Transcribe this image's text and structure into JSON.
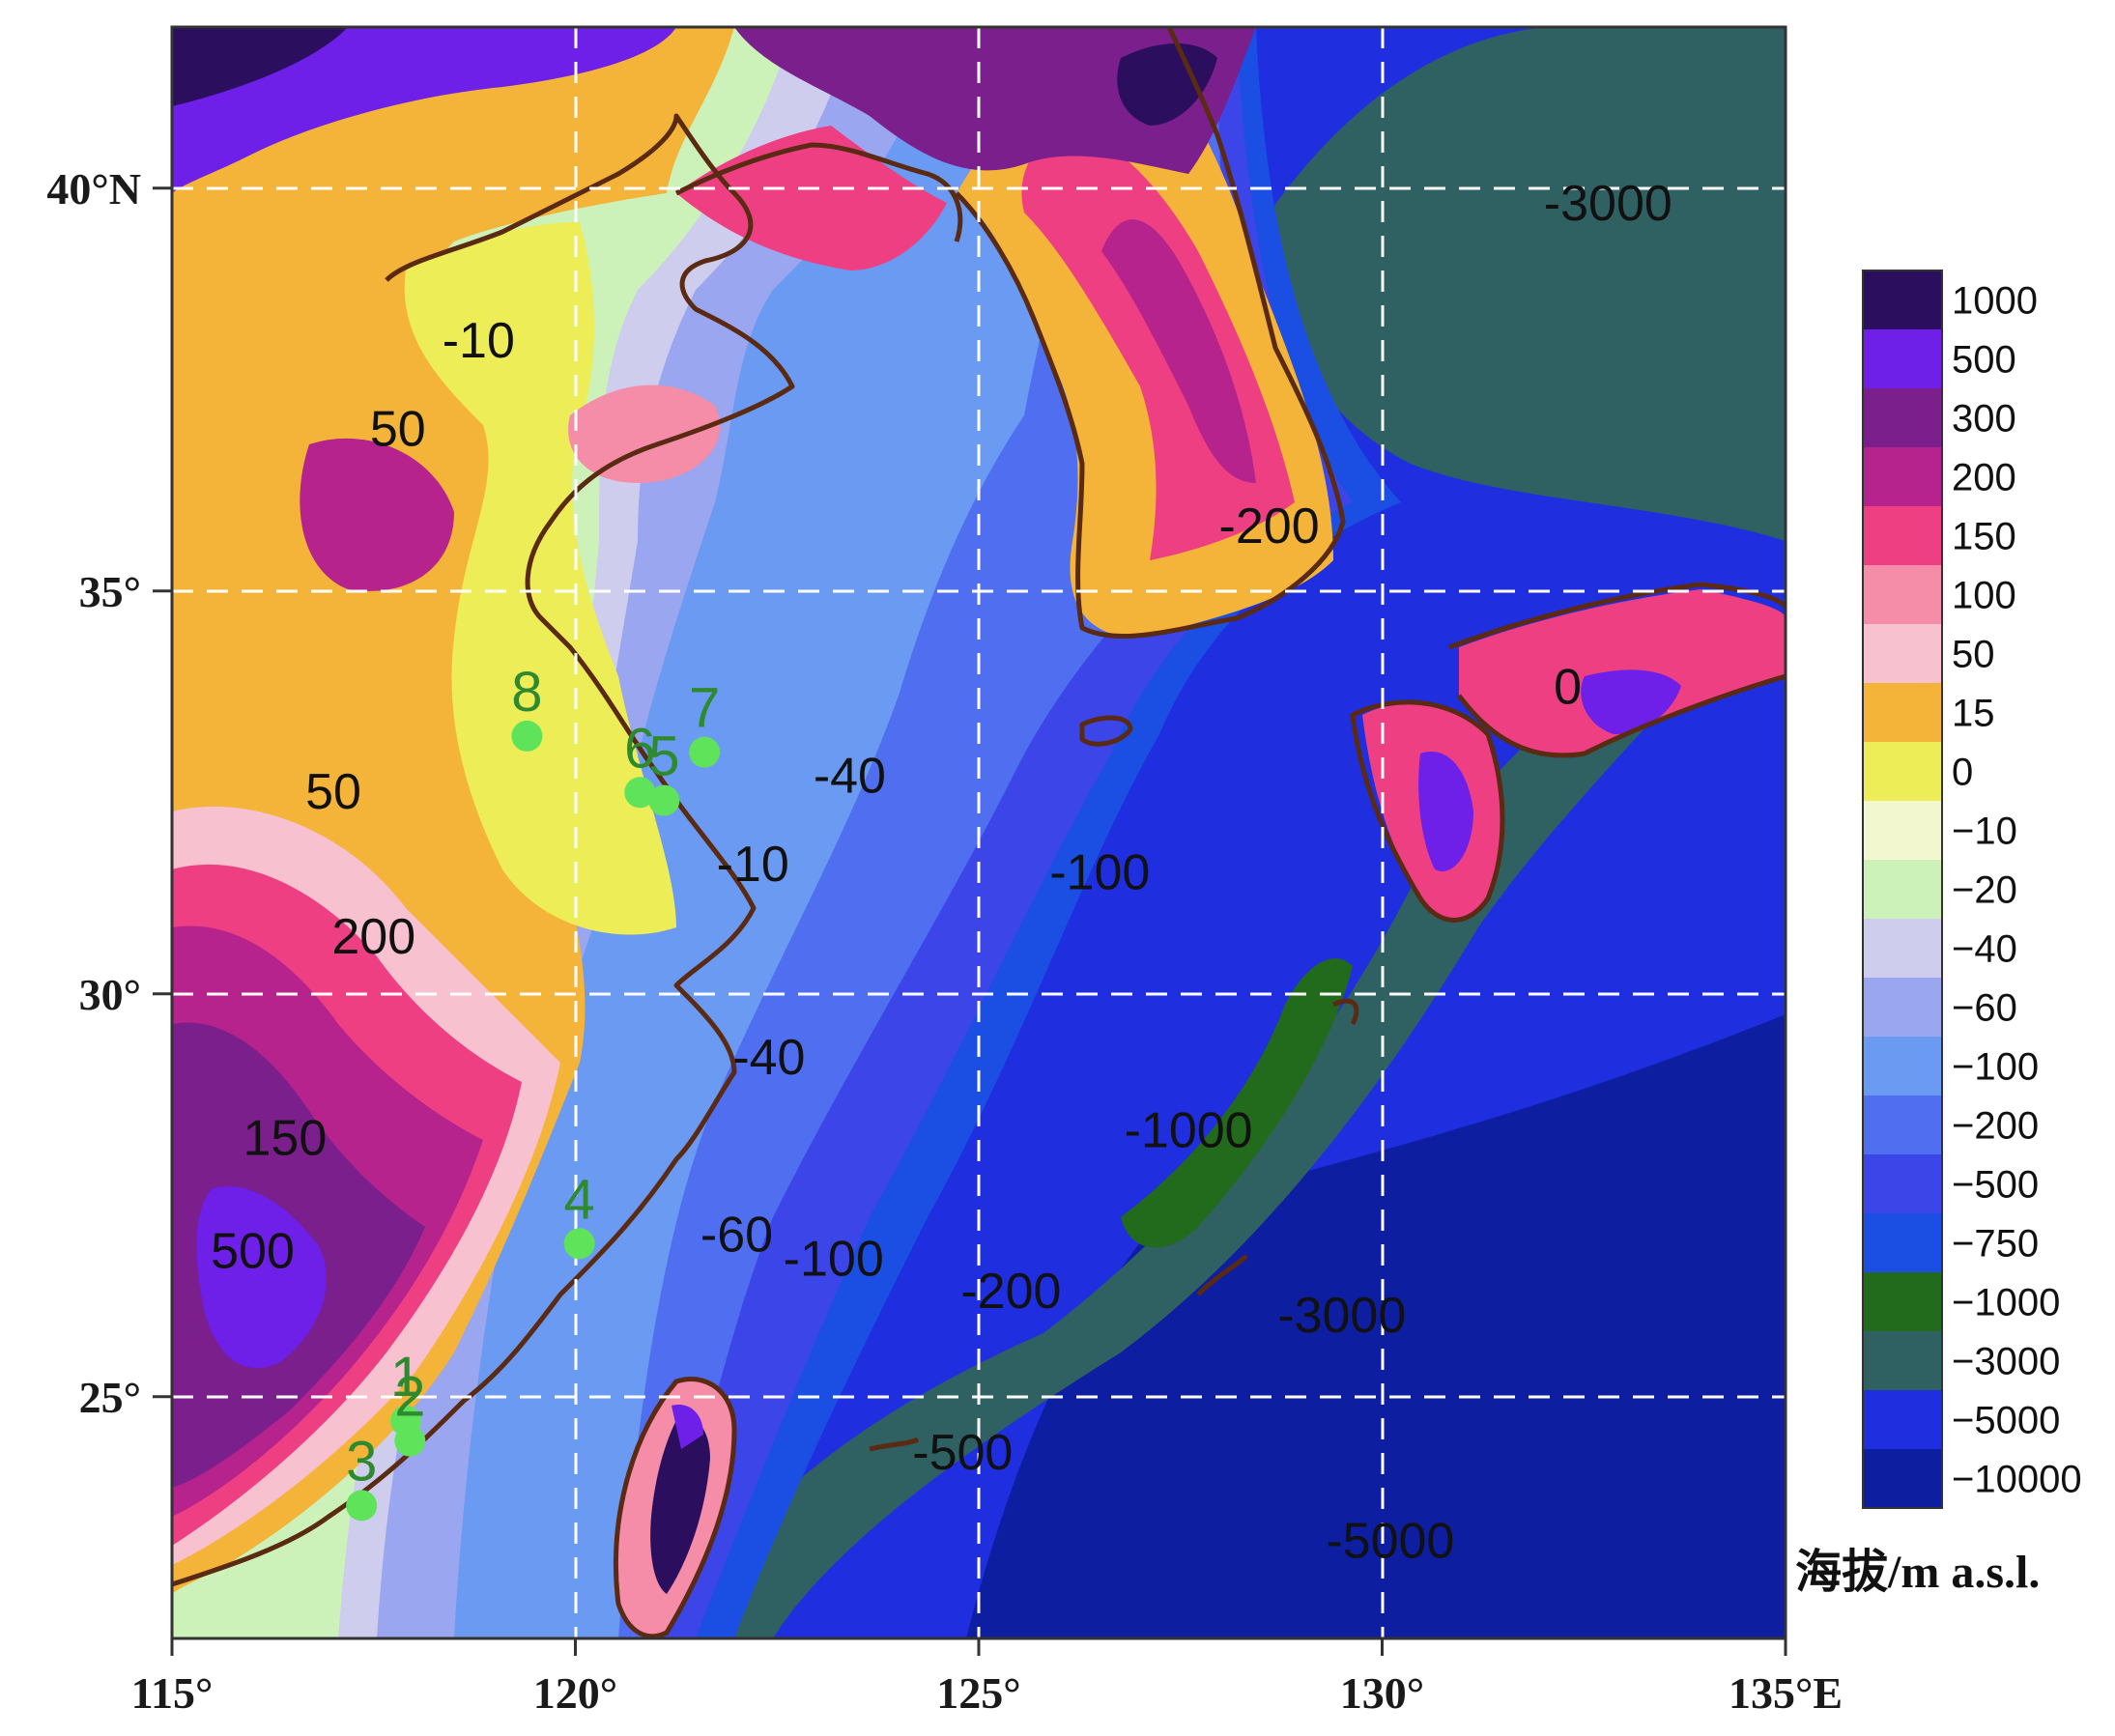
{
  "map": {
    "lon_range": [
      115,
      135
    ],
    "lat_range": [
      22,
      42
    ],
    "lon_ticks": [
      "115°",
      "120°",
      "125°",
      "130°",
      "135°E"
    ],
    "lat_ticks": [
      "40°N",
      "35°",
      "30°",
      "25°"
    ],
    "grid": "dashed white"
  },
  "sites": [
    {
      "label": "1",
      "lon": 117.9,
      "lat": 24.7
    },
    {
      "label": "2",
      "lon": 117.95,
      "lat": 24.45
    },
    {
      "label": "3",
      "lon": 117.35,
      "lat": 23.65
    },
    {
      "label": "4",
      "lon": 120.05,
      "lat": 26.9
    },
    {
      "label": "5",
      "lon": 121.1,
      "lat": 32.4
    },
    {
      "label": "6",
      "lon": 120.8,
      "lat": 32.5
    },
    {
      "label": "7",
      "lon": 121.6,
      "lat": 33.0
    },
    {
      "label": "8",
      "lon": 119.4,
      "lat": 33.2
    }
  ],
  "contour_labels": [
    {
      "text": "-10",
      "lon": 118.8,
      "lat": 37.9
    },
    {
      "text": "50",
      "lon": 117.8,
      "lat": 36.8
    },
    {
      "text": "-3000",
      "lon": 132.8,
      "lat": 39.6
    },
    {
      "text": "-200",
      "lon": 128.6,
      "lat": 35.6
    },
    {
      "text": "50",
      "lon": 117.0,
      "lat": 32.3
    },
    {
      "text": "-40",
      "lon": 123.4,
      "lat": 32.5
    },
    {
      "text": "-10",
      "lon": 122.2,
      "lat": 31.4
    },
    {
      "text": "-100",
      "lon": 126.5,
      "lat": 31.3
    },
    {
      "text": "0",
      "lon": 132.3,
      "lat": 33.6
    },
    {
      "text": "200",
      "lon": 117.5,
      "lat": 30.5
    },
    {
      "text": "-40",
      "lon": 122.4,
      "lat": 29.0
    },
    {
      "text": "-1000",
      "lon": 127.6,
      "lat": 28.1
    },
    {
      "text": "150",
      "lon": 116.4,
      "lat": 28.0
    },
    {
      "text": "-60",
      "lon": 122.0,
      "lat": 26.8
    },
    {
      "text": "-100",
      "lon": 123.2,
      "lat": 26.5
    },
    {
      "text": "-200",
      "lon": 125.4,
      "lat": 26.1
    },
    {
      "text": "500",
      "lon": 116.0,
      "lat": 26.6
    },
    {
      "text": "-3000",
      "lon": 129.5,
      "lat": 25.8
    },
    {
      "text": "-500",
      "lon": 124.8,
      "lat": 24.1
    },
    {
      "text": "-5000",
      "lon": 130.1,
      "lat": 23.0
    }
  ],
  "legend": {
    "title": "海拔/m a.s.l.",
    "ticks": [
      "1000",
      "500",
      "300",
      "200",
      "150",
      "100",
      "50",
      "15",
      "0",
      "−10",
      "−20",
      "−40",
      "−60",
      "−100",
      "−200",
      "−500",
      "−750",
      "−1000",
      "−3000",
      "−5000",
      "−10000"
    ],
    "colors": [
      "#2b0f5e",
      "#6e1fe8",
      "#7b1f8c",
      "#b6238d",
      "#ef3f83",
      "#f58ca8",
      "#f7c1cf",
      "#f4b43a",
      "#eded58",
      "#f3f7cf",
      "#cdf2b9",
      "#cfcdee",
      "#9aa6ef",
      "#6a9af2",
      "#4f6ef0",
      "#3b45e8",
      "#1b4fe3",
      "#236b1c",
      "#2f6163",
      "#1f2fe0",
      "#0e1ea0"
    ]
  },
  "palette": {
    "deep_ocean": "#0e1ea0",
    "ocean_5000": "#1f2fe0",
    "trench_3000": "#2f6163",
    "slope_1000": "#236b1c",
    "shelf_500": "#1b4fe3",
    "shelf_200": "#3b45e8",
    "shelf_100": "#4f6ef0",
    "shelf_60": "#6a9af2",
    "shelf_40": "#9aa6ef",
    "shelf_20": "#cfcdee",
    "shelf_10": "#cdf2b9",
    "coast_0": "#f3f7cf",
    "lowland_15": "#eded58",
    "plain_50": "#f4b43a",
    "hill_100": "#f7c1cf",
    "hill_150": "#f58ca8",
    "hill_200": "#ef3f83",
    "hill_300": "#b6238d",
    "mountain_500": "#7b1f8c",
    "mountain_1000": "#6e1fe8",
    "peak": "#2b0f5e",
    "coastline": "#5a2a12",
    "site_marker": "#5fe35a"
  }
}
